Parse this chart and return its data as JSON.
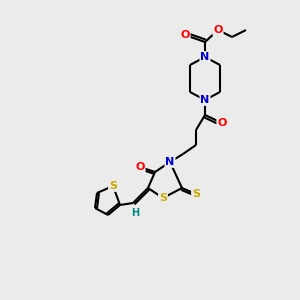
{
  "bg_color": "#ebebeb",
  "atom_colors": {
    "C": "#000000",
    "N": "#0000cc",
    "O": "#ff0000",
    "S": "#ccaa00",
    "H": "#008888"
  },
  "figsize": [
    3.0,
    3.0
  ],
  "dpi": 100
}
